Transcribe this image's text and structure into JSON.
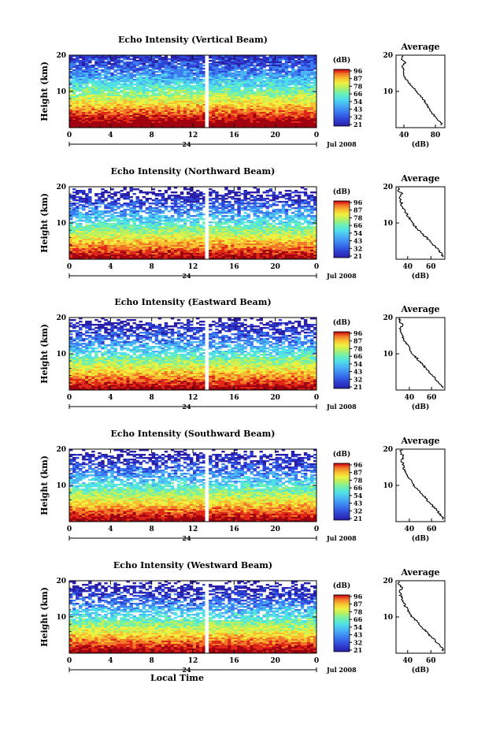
{
  "chart_data": [
    {
      "type": "heatmap",
      "title": "Echo Intensity (Vertical Beam)",
      "ylabel": "Height (km)",
      "y_ticks": [
        "10",
        "20"
      ],
      "ylim": [
        0,
        20
      ],
      "x_ticks": [
        "0",
        "4",
        "8",
        "12",
        "16",
        "20",
        "0"
      ],
      "xlim": [
        0,
        24
      ],
      "date_marker": "24",
      "date_label": "Jul 2008",
      "colorbar": {
        "unit": "(dB)",
        "ticks": [
          "96",
          "87",
          "78",
          "66",
          "54",
          "43",
          "32",
          "21"
        ],
        "range": [
          21,
          96
        ]
      },
      "profile": {
        "title": "Average",
        "xlabel": "(dB)",
        "x_ticks": [
          "40",
          "80"
        ],
        "xlim": [
          30,
          92
        ],
        "y_ticks": [
          "10",
          "20"
        ],
        "height_km": [
          1,
          2,
          3,
          4,
          5,
          6,
          7,
          8,
          9,
          10,
          11,
          12,
          13,
          14,
          15,
          16,
          17,
          18,
          19,
          20
        ],
        "db": [
          88,
          84,
          80,
          76,
          73,
          70,
          67,
          64,
          60,
          56,
          52,
          48,
          44,
          41,
          40,
          39,
          38,
          42,
          37,
          40
        ]
      },
      "gap_hour": 13.3
    },
    {
      "type": "heatmap",
      "title": "Echo Intensity (Northward Beam)",
      "ylabel": "Height (km)",
      "y_ticks": [
        "10",
        "20"
      ],
      "ylim": [
        0,
        20
      ],
      "x_ticks": [
        "0",
        "4",
        "8",
        "12",
        "16",
        "20",
        "0"
      ],
      "xlim": [
        0,
        24
      ],
      "date_marker": "24",
      "date_label": "Jul 2008",
      "colorbar": {
        "unit": "(dB)",
        "ticks": [
          "96",
          "87",
          "78",
          "66",
          "54",
          "43",
          "32",
          "21"
        ],
        "range": [
          21,
          96
        ]
      },
      "profile": {
        "title": "Average",
        "xlabel": "(dB)",
        "x_ticks": [
          "40",
          "60"
        ],
        "xlim": [
          30,
          72
        ],
        "y_ticks": [
          "10",
          "20"
        ],
        "height_km": [
          1,
          2,
          3,
          4,
          5,
          6,
          7,
          8,
          9,
          10,
          11,
          12,
          13,
          14,
          15,
          16,
          17,
          18,
          19,
          20
        ],
        "db": [
          70,
          68,
          65,
          62,
          59,
          56,
          53,
          50,
          47,
          44,
          42,
          40,
          38,
          36,
          35,
          34,
          33,
          35,
          32,
          33
        ]
      },
      "gap_hour": 13.3
    },
    {
      "type": "heatmap",
      "title": "Echo Intensity (Eastward Beam)",
      "ylabel": "Height (km)",
      "y_ticks": [
        "10",
        "20"
      ],
      "ylim": [
        0,
        20
      ],
      "x_ticks": [
        "0",
        "4",
        "8",
        "12",
        "16",
        "20",
        "0"
      ],
      "xlim": [
        0,
        24
      ],
      "date_marker": "24",
      "date_label": "Jul 2008",
      "colorbar": {
        "unit": "(dB)",
        "ticks": [
          "96",
          "87",
          "78",
          "66",
          "54",
          "43",
          "32",
          "21"
        ],
        "range": [
          21,
          96
        ]
      },
      "profile": {
        "title": "Average",
        "xlabel": "(dB)",
        "x_ticks": [
          "40",
          "60"
        ],
        "xlim": [
          28,
          72
        ],
        "y_ticks": [
          "10",
          "20"
        ],
        "height_km": [
          1,
          2,
          3,
          4,
          5,
          6,
          7,
          8,
          9,
          10,
          11,
          12,
          13,
          14,
          15,
          16,
          17,
          18,
          19,
          20
        ],
        "db": [
          70,
          67,
          64,
          61,
          58,
          55,
          52,
          49,
          46,
          43,
          41,
          39,
          37,
          35,
          34,
          33,
          32,
          34,
          31,
          32
        ]
      },
      "gap_hour": 13.3
    },
    {
      "type": "heatmap",
      "title": "Echo Intensity (Southward Beam)",
      "ylabel": "Height (km)",
      "y_ticks": [
        "10",
        "20"
      ],
      "ylim": [
        0,
        20
      ],
      "x_ticks": [
        "0",
        "4",
        "8",
        "12",
        "16",
        "20",
        "0"
      ],
      "xlim": [
        0,
        24
      ],
      "date_marker": "24",
      "date_label": "Jul 2008",
      "colorbar": {
        "unit": "(dB)",
        "ticks": [
          "96",
          "87",
          "78",
          "66",
          "54",
          "43",
          "32",
          "21"
        ],
        "range": [
          21,
          96
        ]
      },
      "profile": {
        "title": "Average",
        "xlabel": "(dB)",
        "x_ticks": [
          "40",
          "60"
        ],
        "xlim": [
          28,
          72
        ],
        "y_ticks": [
          "10",
          "20"
        ],
        "height_km": [
          1,
          2,
          3,
          4,
          5,
          6,
          7,
          8,
          9,
          10,
          11,
          12,
          13,
          14,
          15,
          16,
          17,
          18,
          19,
          20
        ],
        "db": [
          70,
          68,
          65,
          62,
          59,
          56,
          53,
          50,
          47,
          44,
          42,
          40,
          38,
          36,
          35,
          34,
          33,
          35,
          32,
          33
        ]
      },
      "gap_hour": 13.3
    },
    {
      "type": "heatmap",
      "title": "Echo Intensity (Westward Beam)",
      "ylabel": "Height (km)",
      "y_ticks": [
        "10",
        "20"
      ],
      "ylim": [
        0,
        20
      ],
      "x_ticks": [
        "0",
        "4",
        "8",
        "12",
        "16",
        "20",
        "0"
      ],
      "xlim": [
        0,
        24
      ],
      "date_marker": "24",
      "date_label": "Jul 2008",
      "xlabel": "Local Time",
      "colorbar": {
        "unit": "(dB)",
        "ticks": [
          "96",
          "87",
          "78",
          "66",
          "54",
          "43",
          "32",
          "21"
        ],
        "range": [
          21,
          96
        ]
      },
      "profile": {
        "title": "Average",
        "xlabel": "(dB)",
        "x_ticks": [
          "40",
          "60"
        ],
        "xlim": [
          30,
          72
        ],
        "y_ticks": [
          "10",
          "20"
        ],
        "height_km": [
          1,
          2,
          3,
          4,
          5,
          6,
          7,
          8,
          9,
          10,
          11,
          12,
          13,
          14,
          15,
          16,
          17,
          18,
          19,
          20
        ],
        "db": [
          70,
          68,
          65,
          62,
          59,
          56,
          53,
          50,
          47,
          44,
          42,
          40,
          38,
          36,
          35,
          34,
          33,
          35,
          32,
          34
        ]
      },
      "gap_hour": 13.3
    }
  ],
  "colors": {
    "scale": [
      "#2a1fa8",
      "#2f44d6",
      "#3b7cf0",
      "#4ab4f4",
      "#4fe0e8",
      "#6ef0b0",
      "#b8f060",
      "#f0f040",
      "#f8c030",
      "#f07828",
      "#e02818",
      "#a00010"
    ]
  }
}
